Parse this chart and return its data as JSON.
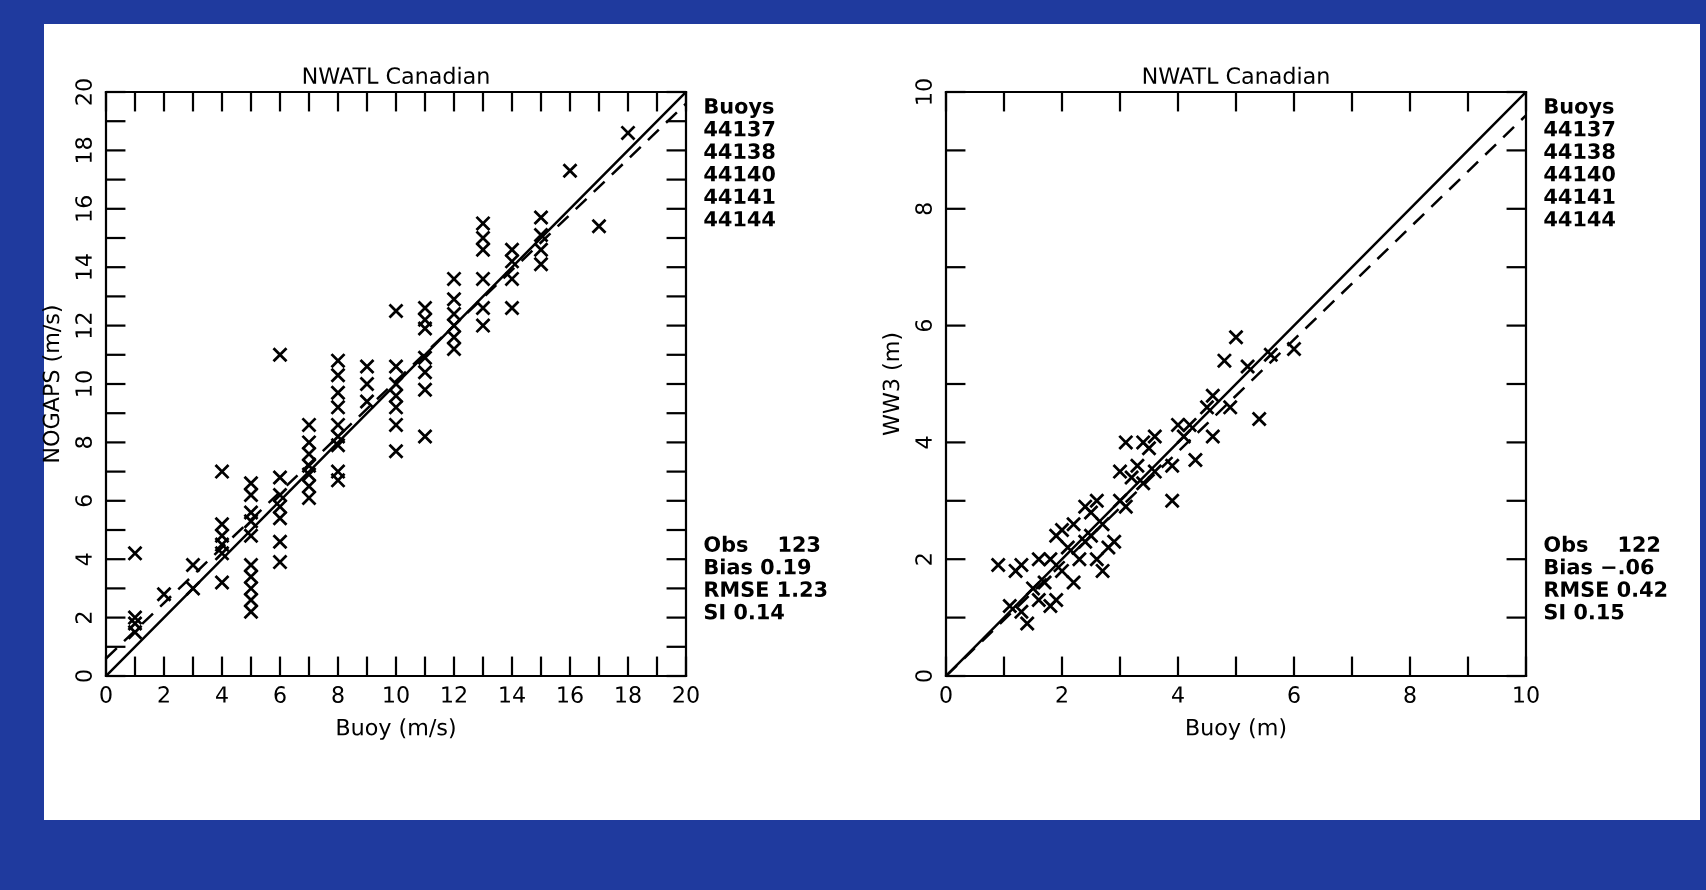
{
  "chart_data": [
    {
      "type": "scatter",
      "title": "NWATL Canadian",
      "xlabel": "Buoy (m/s)",
      "ylabel": "NOGAPS (m/s)",
      "xlim": [
        0,
        20
      ],
      "ylim": [
        0,
        20
      ],
      "xticks": [
        0,
        {
          "value": 1,
          "label": null
        },
        2,
        {
          "value": 3,
          "label": null
        },
        4,
        {
          "value": 5,
          "label": null
        },
        6,
        {
          "value": 7,
          "label": null
        },
        8,
        {
          "value": 9,
          "label": null
        },
        10,
        {
          "value": 11,
          "label": null
        },
        12,
        {
          "value": 13,
          "label": null
        },
        14,
        {
          "value": 15,
          "label": null
        },
        16,
        {
          "value": 17,
          "label": null
        },
        18,
        {
          "value": 19,
          "label": null
        },
        20
      ],
      "yticks": [
        0,
        {
          "value": 1,
          "label": null
        },
        2,
        {
          "value": 3,
          "label": null
        },
        4,
        {
          "value": 5,
          "label": null
        },
        6,
        {
          "value": 7,
          "label": null
        },
        8,
        {
          "value": 9,
          "label": null
        },
        10,
        {
          "value": 11,
          "label": null
        },
        12,
        {
          "value": 13,
          "label": null
        },
        14,
        {
          "value": 15,
          "label": null
        },
        16,
        {
          "value": 17,
          "label": null
        },
        18,
        {
          "value": 19,
          "label": null
        },
        20
      ],
      "grid": false,
      "annotations": [
        "Buoys\n44137\n44138\n44140\n44141\n44144",
        "Obs    123\nBias 0.19\nRMSE 1.23\nSI 0.14"
      ],
      "series": [
        {
          "marker": "cross",
          "color": "#000000",
          "x": [
            1,
            1,
            1,
            1,
            2,
            3,
            3,
            4,
            4,
            4,
            4,
            4,
            4,
            5,
            5,
            5,
            5,
            5,
            5,
            5,
            5,
            5,
            5,
            6,
            6,
            6,
            6,
            6,
            6,
            6,
            7,
            7,
            7,
            7,
            7,
            7,
            7,
            8,
            8,
            8,
            8,
            8,
            8,
            8,
            8,
            8,
            9,
            9,
            9,
            10,
            10,
            10,
            10,
            10,
            10,
            10,
            11,
            11,
            11,
            11,
            11,
            11,
            11,
            12,
            12,
            12,
            12,
            12,
            12,
            13,
            13,
            13,
            13,
            13,
            13,
            14,
            14,
            14,
            14,
            15,
            15,
            15,
            15,
            16,
            17,
            18
          ],
          "values": [
            4.2,
            2.0,
            1.8,
            1.5,
            2.8,
            3.0,
            3.8,
            7.0,
            5.2,
            4.8,
            4.5,
            4.2,
            3.2,
            6.6,
            6.2,
            5.6,
            5.3,
            4.8,
            3.8,
            3.4,
            3.0,
            2.6,
            2.2,
            11.0,
            6.8,
            6.2,
            5.8,
            5.4,
            4.6,
            3.9,
            8.6,
            8.0,
            7.6,
            7.2,
            6.9,
            6.5,
            6.1,
            10.8,
            10.3,
            9.7,
            9.2,
            8.6,
            8.2,
            7.9,
            7.0,
            6.7,
            10.6,
            10.0,
            9.4,
            12.5,
            10.6,
            10.0,
            9.6,
            9.2,
            8.6,
            7.7,
            12.6,
            12.2,
            11.9,
            10.9,
            10.4,
            9.8,
            8.2,
            13.6,
            12.9,
            12.4,
            12.0,
            11.6,
            11.2,
            15.5,
            15.0,
            14.6,
            13.6,
            12.6,
            12.0,
            14.6,
            14.2,
            13.6,
            12.6,
            15.7,
            15.1,
            14.6,
            14.1,
            17.3,
            15.4,
            18.6
          ]
        },
        {
          "type": "line",
          "color": "#000000",
          "line_style": "solid",
          "x": [
            0,
            20
          ],
          "values": [
            0,
            20
          ]
        },
        {
          "type": "line",
          "color": "#000000",
          "line_style": "dashed",
          "x": [
            0,
            20
          ],
          "values": [
            0.6,
            19.6
          ]
        }
      ]
    },
    {
      "type": "scatter",
      "title": "NWATL Canadian",
      "xlabel": "Buoy (m)",
      "ylabel": "WW3 (m)",
      "xlim": [
        0,
        10
      ],
      "ylim": [
        0,
        10
      ],
      "xticks": [
        0,
        {
          "value": 1,
          "label": null
        },
        2,
        {
          "value": 3,
          "label": null
        },
        4,
        {
          "value": 5,
          "label": null
        },
        6,
        {
          "value": 7,
          "label": null
        },
        8,
        {
          "value": 9,
          "label": null
        },
        10
      ],
      "yticks": [
        0,
        {
          "value": 1,
          "label": null
        },
        2,
        {
          "value": 3,
          "label": null
        },
        4,
        {
          "value": 5,
          "label": null
        },
        6,
        {
          "value": 7,
          "label": null
        },
        8,
        {
          "value": 9,
          "label": null
        },
        10
      ],
      "grid": false,
      "annotations": [
        "Buoys\n44137\n44138\n44140\n44141\n44144",
        "Obs    122\nBias −.06\nRMSE 0.42\nSI 0.15"
      ],
      "series": [
        {
          "marker": "cross",
          "color": "#000000",
          "x": [
            0.9,
            1.2,
            1.3,
            1.1,
            1.3,
            1.4,
            1.5,
            1.6,
            1.7,
            1.8,
            1.8,
            1.9,
            2.0,
            2.1,
            2.2,
            2.2,
            2.3,
            2.4,
            2.5,
            2.6,
            2.6,
            2.7,
            2.8,
            2.9,
            2.7,
            3.0,
            3.0,
            3.1,
            3.2,
            3.3,
            3.4,
            3.5,
            3.6,
            3.1,
            3.4,
            3.6,
            3.9,
            3.9,
            4.0,
            4.2,
            4.1,
            4.3,
            4.5,
            4.6,
            4.6,
            4.8,
            4.9,
            5.0,
            5.2,
            5.4,
            5.6,
            6.0,
            1.6,
            2.0,
            2.4,
            1.9,
            2.5
          ],
          "values": [
            1.9,
            1.8,
            1.9,
            1.2,
            1.1,
            0.9,
            1.5,
            1.3,
            1.6,
            2.0,
            1.2,
            2.4,
            1.8,
            2.2,
            2.6,
            1.6,
            2.0,
            2.9,
            2.4,
            3.0,
            2.0,
            2.6,
            2.2,
            2.3,
            1.8,
            3.0,
            3.5,
            2.9,
            3.4,
            3.6,
            3.3,
            3.9,
            3.5,
            4.0,
            4.0,
            4.1,
            3.0,
            3.6,
            4.3,
            4.3,
            4.1,
            3.7,
            4.6,
            4.8,
            4.1,
            5.4,
            4.6,
            5.8,
            5.3,
            4.4,
            5.5,
            5.6,
            2.0,
            2.5,
            2.3,
            1.3,
            2.8
          ]
        },
        {
          "type": "line",
          "color": "#000000",
          "line_style": "solid",
          "x": [
            0,
            10
          ],
          "values": [
            0,
            10
          ]
        },
        {
          "type": "line",
          "color": "#000000",
          "line_style": "dashed",
          "x": [
            0,
            10
          ],
          "values": [
            0,
            9.6
          ]
        }
      ]
    }
  ]
}
